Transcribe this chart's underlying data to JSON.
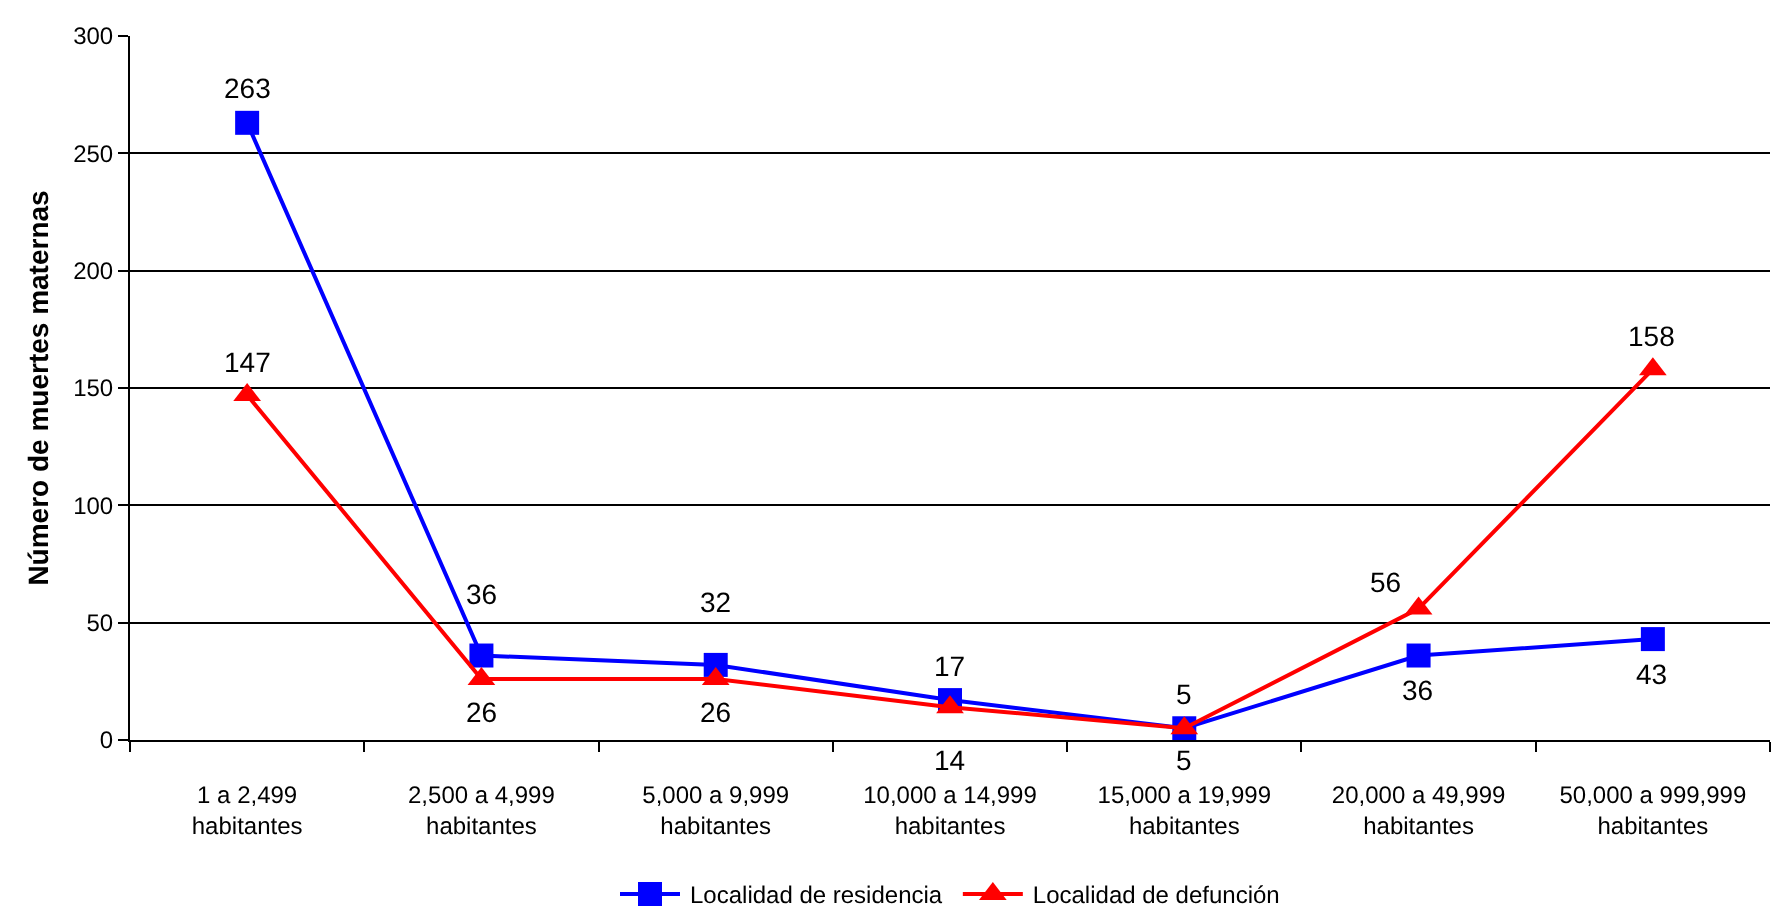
{
  "chart_data": {
    "type": "line",
    "ylabel": "Número de muertes maternas",
    "categories": [
      "1 a 2,499\nhabitantes",
      "2,500 a 4,999\nhabitantes",
      "5,000 a 9,999\nhabitantes",
      "10,000 a 14,999\nhabitantes",
      "15,000 a 19,999\nhabitantes",
      "20,000 a 49,999\nhabitantes",
      "50,000 a 999,999\nhabitantes"
    ],
    "series": [
      {
        "name": "Localidad de residencia",
        "color": "#0000ff",
        "marker": "square",
        "values": [
          263,
          36,
          32,
          17,
          5,
          36,
          43
        ]
      },
      {
        "name": "Localidad de defunción",
        "color": "#ff0000",
        "marker": "triangle",
        "values": [
          147,
          26,
          26,
          14,
          5,
          56,
          158
        ]
      }
    ],
    "ylim": [
      0,
      300
    ],
    "yticks": [
      0,
      50,
      100,
      150,
      200,
      250,
      300
    ],
    "grid": "y",
    "legend": "bottom",
    "data_labels": true,
    "line_style": "solid"
  }
}
